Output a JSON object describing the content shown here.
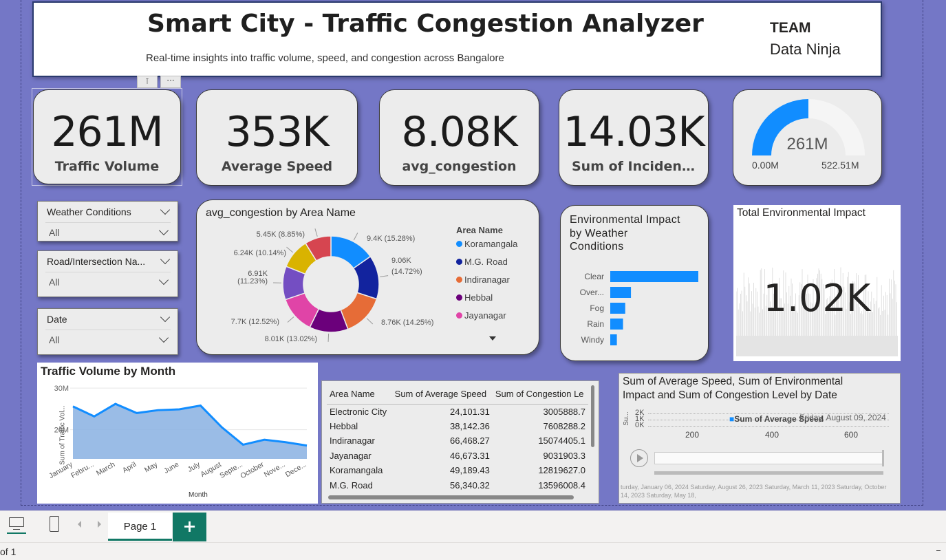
{
  "header": {
    "title": "Smart City - Traffic Congestion Analyzer",
    "subtitle": "Real-time insights into traffic volume, speed, and congestion across Bangalore",
    "team_label": "TEAM",
    "team_name": "Data Ninja"
  },
  "kpis": [
    {
      "value": "261M",
      "label": "Traffic Volume"
    },
    {
      "value": "353K",
      "label": "Average Speed"
    },
    {
      "value": "8.08K",
      "label": "avg_congestion"
    },
    {
      "value": "14.03K",
      "label": "Sum of Incident ..."
    }
  ],
  "gauge": {
    "value": "261M",
    "min": "0.00M",
    "max": "522.51M",
    "fill_fraction": 0.5,
    "color": "#118dff"
  },
  "slicers": [
    {
      "title": "Weather Conditions",
      "value": "All"
    },
    {
      "title": "Road/Intersection Na...",
      "value": "All"
    },
    {
      "title": "Date",
      "value": "All"
    }
  ],
  "donut": {
    "title": "avg_congestion by Area Name",
    "legend_title": "Area Name",
    "legend": [
      "Koramangala",
      "M.G. Road",
      "Indiranagar",
      "Hebbal",
      "Jayanagar"
    ]
  },
  "env_bar": {
    "title_lines": [
      "Environmental Impact",
      "by Weather",
      "Conditions"
    ]
  },
  "total_env": {
    "title": "Total Environmental Impact",
    "value": "1.02K"
  },
  "line": {
    "title": "Traffic Volume by Month",
    "ylabel": "Sum of Traffic Vol...",
    "xlabel": "Month"
  },
  "table": {
    "headers": [
      "Area Name",
      "Sum of Average Speed",
      "Sum of Congestion Le"
    ],
    "rows": [
      [
        "Electronic City",
        "24,101.31",
        "3005888.7"
      ],
      [
        "Hebbal",
        "38,142.36",
        "7608288.2"
      ],
      [
        "Indiranagar",
        "66,468.27",
        "15074405.1"
      ],
      [
        "Jayanagar",
        "46,673.31",
        "9031903.3"
      ],
      [
        "Koramangala",
        "49,189.43",
        "12819627.0"
      ],
      [
        "M.G. Road",
        "56,340.32",
        "13596008.4"
      ]
    ]
  },
  "scatter": {
    "title_line1": "Sum of Average Speed, Sum of Environmental",
    "title_line2": "Impact and Sum of Congestion Level by Date",
    "ylabel": "Su...",
    "y_ticks": [
      "2K",
      "1K",
      "0K"
    ],
    "x_ticks": [
      "200",
      "400",
      "600"
    ],
    "legend": "Sum of Average Speed",
    "play_date": "Friday, August 09, 2024",
    "timeline_text": "turday, January 06, 2024   Saturday, August 26, 2023   Saturday, March 11, 2023   Saturday, October 14, 2023   Saturday, May 18,"
  },
  "footer": {
    "page_tab": "Page 1",
    "add_label": "+",
    "status": "of 1"
  },
  "chart_data": [
    {
      "type": "pie",
      "title": "avg_congestion by Area Name",
      "categories": [
        "Koramangala",
        "M.G. Road",
        "Indiranagar",
        "Hebbal",
        "Jayanagar",
        "",
        "",
        ""
      ],
      "values": [
        9.4,
        9.06,
        8.76,
        8.01,
        7.7,
        6.91,
        6.24,
        5.45
      ],
      "labels": [
        "9.4K (15.28%)",
        "9.06K (14.72%)",
        "8.76K (14.25%)",
        "8.01K (13.02%)",
        "7.7K (12.52%)",
        "6.91K (11.23%)",
        "6.24K (10.14%)",
        "5.45K (8.85%)"
      ],
      "colors": [
        "#118dff",
        "#12239e",
        "#e66c37",
        "#6b007b",
        "#e044a7",
        "#744ec2",
        "#d9b300",
        "#d64550"
      ]
    },
    {
      "type": "bar",
      "title": "Environmental Impact by Weather Conditions",
      "categories": [
        "Clear",
        "Over...",
        "Fog",
        "Rain",
        "Windy"
      ],
      "values": [
        100,
        23.5,
        17,
        14.5,
        7.5
      ],
      "color": "#118dff"
    },
    {
      "type": "area",
      "title": "Traffic Volume by Month",
      "categories": [
        "January",
        "Febru...",
        "March",
        "April",
        "May",
        "June",
        "July",
        "August",
        "Septe...",
        "October",
        "Nove...",
        "Dece..."
      ],
      "values": [
        25.6,
        23.2,
        26.2,
        24.0,
        24.7,
        24.9,
        25.8,
        20.6,
        16.4,
        17.6,
        17.0,
        16.2
      ],
      "y_ticks": [
        "30M",
        "20M"
      ],
      "ylim": [
        13,
        32
      ],
      "color": "#118dff"
    }
  ]
}
